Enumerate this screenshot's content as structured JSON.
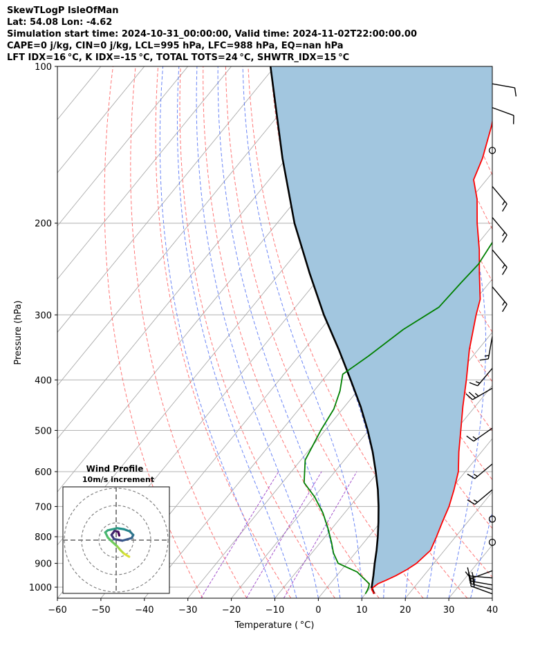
{
  "header": {
    "line1": "SkewTLogP IsleOfMan",
    "line2": "Lat: 54.08   Lon: -4.62",
    "line3": "Simulation start time: 2024-10-31_00:00:00, Valid time: 2024-11-02T22:00:00.00",
    "line4": "CAPE=0 j/kg, CIN=0 j/kg, LCL=995 hPa, LFC=988 hPa, EQ=nan hPa",
    "line5": "LFT IDX=16 °C, K IDX=-15 °C, TOTAL TOTS=24 °C, SHWTR_IDX=15 °C"
  },
  "chart_data": {
    "type": "skewt",
    "xlabel": "Temperature ( °C)",
    "ylabel": "Pressure (hPa)",
    "xlim": [
      -60,
      40
    ],
    "ylim": [
      1050,
      100
    ],
    "x_ticks": [
      -60,
      -50,
      -40,
      -30,
      -20,
      -10,
      0,
      10,
      20,
      30,
      40
    ],
    "x_tick_labels": [
      "−60",
      "−50",
      "−40",
      "−30",
      "−20",
      "−10",
      "0",
      "10",
      "20",
      "30",
      "40"
    ],
    "y_ticks": [
      1000,
      900,
      800,
      700,
      600,
      500,
      400,
      300,
      200,
      100
    ],
    "y_tick_labels": [
      "1000",
      "900",
      "800",
      "700",
      "600",
      "500",
      "400",
      "300",
      "200",
      "100"
    ],
    "grid": true,
    "temperature": {
      "pressure": [
        1030,
        1010,
        1000,
        985,
        970,
        950,
        925,
        900,
        875,
        850,
        800,
        750,
        700,
        650,
        600,
        550,
        500,
        450,
        400,
        350,
        300,
        280,
        250,
        225,
        200,
        180,
        165,
        150,
        130,
        115,
        100
      ],
      "value": [
        12,
        10.6,
        10.6,
        11,
        12.2,
        13.6,
        15,
        16,
        16.4,
        16.8,
        15.6,
        14.2,
        12.8,
        10.8,
        8.4,
        4.8,
        1.2,
        -2.8,
        -7,
        -12,
        -17,
        -19,
        -24,
        -28.5,
        -34,
        -38.5,
        -43,
        -45,
        -49,
        -53,
        -58
      ]
    },
    "dewpoint": {
      "pressure": [
        1030,
        1015,
        1000,
        985,
        965,
        935,
        900,
        860,
        820,
        770,
        720,
        670,
        630,
        570,
        500,
        455,
        420,
        390,
        360,
        320,
        290,
        260,
        240,
        215,
        195,
        175,
        160,
        145,
        125,
        110,
        100
      ],
      "value": [
        10,
        9.8,
        9.5,
        9,
        7,
        4,
        -2,
        -5,
        -7.5,
        -11,
        -15,
        -20,
        -25,
        -29,
        -31,
        -32,
        -34,
        -36.5,
        -34,
        -31,
        -27,
        -26.5,
        -26,
        -27,
        -28,
        -33,
        -39,
        -42,
        -47,
        -49,
        -52
      ]
    },
    "parcel": {
      "pressure": [
        1030,
        1000,
        950,
        900,
        850,
        800,
        750,
        700,
        650,
        600,
        550,
        500,
        450,
        400,
        350,
        300,
        250,
        200,
        150,
        100
      ],
      "value": [
        12,
        10.2,
        8.4,
        6.4,
        4.4,
        2.1,
        -0.5,
        -3.4,
        -6.7,
        -10.6,
        -15,
        -20.2,
        -26.3,
        -33.6,
        -42,
        -52,
        -63,
        -76,
        -91,
        -111
      ]
    },
    "wind_barbs": [
      {
        "pressure": 1030,
        "speed_kt": 20,
        "dir_deg": 290
      },
      {
        "pressure": 1010,
        "speed_kt": 20,
        "dir_deg": 285
      },
      {
        "pressure": 990,
        "speed_kt": 15,
        "dir_deg": 280
      },
      {
        "pressure": 960,
        "speed_kt": 15,
        "dir_deg": 275
      },
      {
        "pressure": 930,
        "speed_kt": 10,
        "dir_deg": 250
      },
      {
        "pressure": 820,
        "speed_kt": 0,
        "dir_deg": 0
      },
      {
        "pressure": 740,
        "speed_kt": 0,
        "dir_deg": 0
      },
      {
        "pressure": 650,
        "speed_kt": 15,
        "dir_deg": 230
      },
      {
        "pressure": 580,
        "speed_kt": 15,
        "dir_deg": 230
      },
      {
        "pressure": 495,
        "speed_kt": 15,
        "dir_deg": 235
      },
      {
        "pressure": 415,
        "speed_kt": 25,
        "dir_deg": 240
      },
      {
        "pressure": 380,
        "speed_kt": 15,
        "dir_deg": 220
      },
      {
        "pressure": 330,
        "speed_kt": 15,
        "dir_deg": 190
      },
      {
        "pressure": 265,
        "speed_kt": 15,
        "dir_deg": 140
      },
      {
        "pressure": 225,
        "speed_kt": 15,
        "dir_deg": 140
      },
      {
        "pressure": 195,
        "speed_kt": 15,
        "dir_deg": 140
      },
      {
        "pressure": 170,
        "speed_kt": 15,
        "dir_deg": 140
      },
      {
        "pressure": 145,
        "speed_kt": 0,
        "dir_deg": 0
      },
      {
        "pressure": 120,
        "speed_kt": 10,
        "dir_deg": 110
      },
      {
        "pressure": 108,
        "speed_kt": 10,
        "dir_deg": 100
      }
    ],
    "hodograph": {
      "title": "Wind Profile",
      "subtitle": "10m/s increment",
      "rings_mps": [
        10,
        20,
        30
      ],
      "u": [
        2.5,
        1.5,
        0.8,
        0.2,
        -0.8,
        -1.6,
        -2.1,
        -1.6,
        0.2,
        1.5,
        2.6,
        3.3,
        3,
        1.2,
        -0.4,
        -0.9,
        -0.3,
        0.4,
        0.6
      ],
      "v": [
        -3.2,
        -2.6,
        -1.9,
        -1.2,
        -0.3,
        0.5,
        1.5,
        1.9,
        2.3,
        2.1,
        1.7,
        1,
        0.4,
        -0.1,
        0.2,
        1,
        1.8,
        1.6,
        0.9
      ]
    },
    "colors": {
      "temperature": "#ff0000",
      "dewpoint": "#008000",
      "parcel": "#000000",
      "fill": "#a2c6df",
      "dry_adiabat": "#ff5d5d",
      "moist_adiabat": "#4f6ff5",
      "mixing_ratio": "#9a40c7",
      "isotherm": "#aaaaaa",
      "grid": "#b0b0b0"
    }
  }
}
